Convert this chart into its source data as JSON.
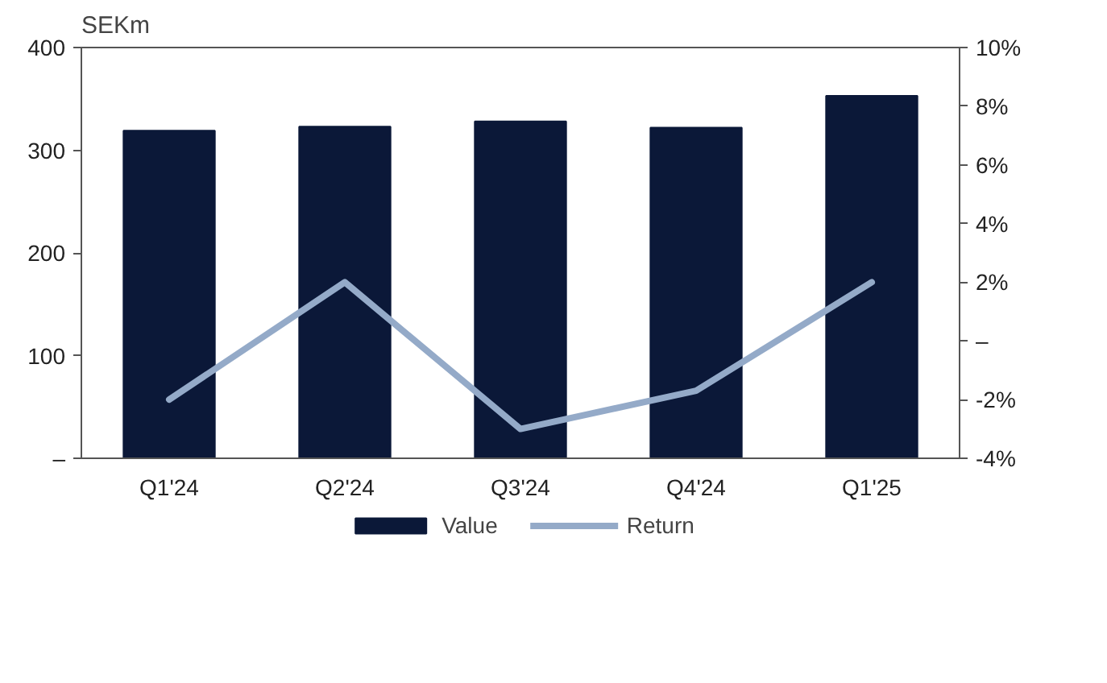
{
  "chart_data": {
    "type": "bar",
    "ylabel": "SEKm",
    "categories": [
      "Q1'24",
      "Q2'24",
      "Q3'24",
      "Q4'24",
      "Q1'25"
    ],
    "series": [
      {
        "name": "Value",
        "color": "#0b1838",
        "values": [
          319,
          323,
          328,
          322,
          353
        ]
      },
      {
        "name": "Return",
        "type": "line",
        "axis": "y2",
        "color": "#94aac8",
        "values": [
          -2,
          2,
          -3,
          -1.7,
          2
        ]
      }
    ],
    "ylim": [
      0,
      400
    ],
    "yticks": [
      {
        "value": 0,
        "label": "–"
      },
      100,
      200,
      300,
      400
    ],
    "y2lim": [
      -4,
      10
    ],
    "y2ticks": [
      {
        "value": -4,
        "label": "-4%"
      },
      {
        "value": -2,
        "label": "-2%"
      },
      {
        "value": 0,
        "label": "–"
      },
      {
        "value": 2,
        "label": "2%"
      },
      {
        "value": 4,
        "label": "4%"
      },
      {
        "value": 6,
        "label": "6%"
      },
      {
        "value": 8,
        "label": "8%"
      },
      {
        "value": 10,
        "label": "10%"
      }
    ],
    "legend": "bottom",
    "grid": false,
    "line_style": "solid",
    "marker": "none"
  }
}
